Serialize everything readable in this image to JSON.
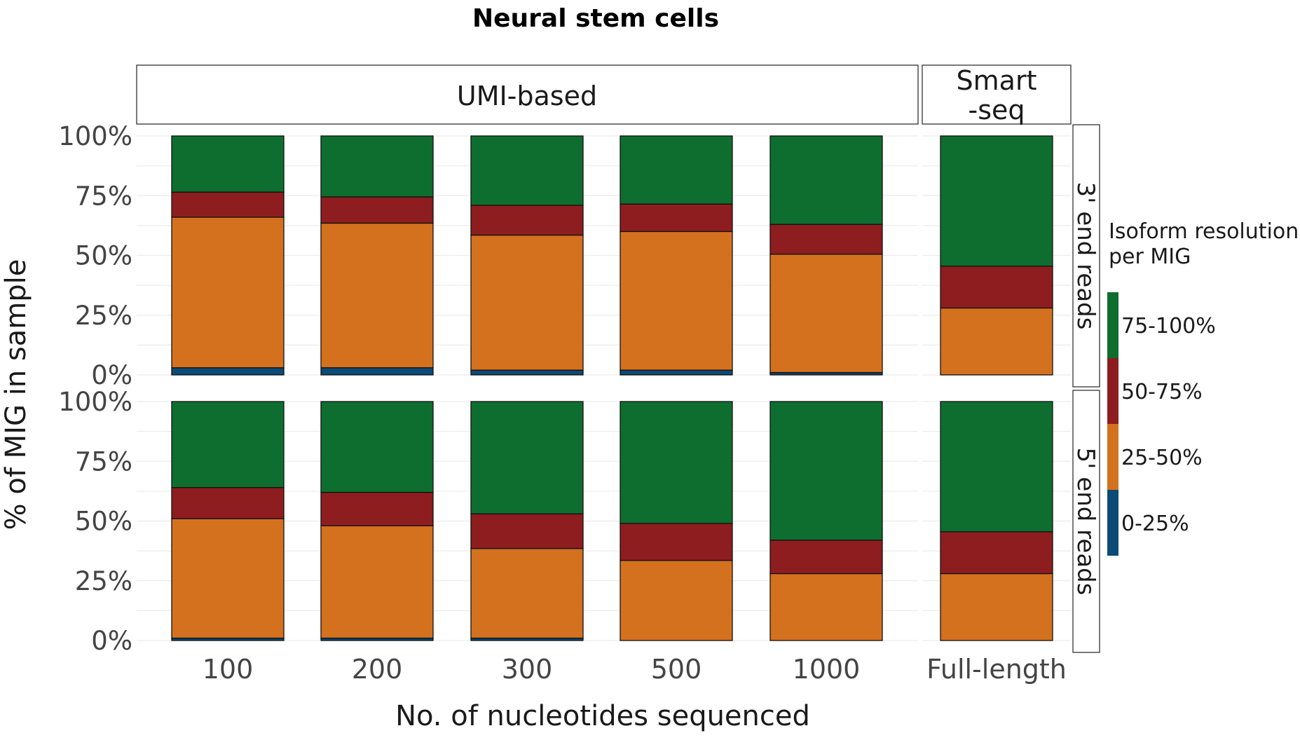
{
  "chart_data": {
    "type": "bar",
    "stacked": true,
    "title": "Neural stem cells",
    "xlabel": "No. of nucleotides sequenced",
    "ylabel": "% of MIG in sample",
    "ylim": [
      0,
      100
    ],
    "y_ticks": [
      "0%",
      "25%",
      "50%",
      "75%",
      "100%"
    ],
    "grid": true,
    "legend_position": "right",
    "legend": {
      "title_line1": "Isoform resolution",
      "title_line2": "per MIG",
      "entries": [
        {
          "key": "75-100%",
          "label": "75-100%",
          "color": "#0e6e2f"
        },
        {
          "key": "50-75%",
          "label": "50-75%",
          "color": "#8e1d1f"
        },
        {
          "key": "25-50%",
          "label": "25-50%",
          "color": "#d4711f"
        },
        {
          "key": "0-25%",
          "label": "0-25%",
          "color": "#0c4a77"
        }
      ]
    },
    "column_facets": [
      {
        "label": "UMI-based",
        "categories": [
          "100",
          "200",
          "300",
          "500",
          "1000"
        ]
      },
      {
        "label_line1": "Smart",
        "label_line2": "-seq",
        "categories": [
          "Full-length"
        ]
      }
    ],
    "row_facets": [
      {
        "label": "3' end reads",
        "series": [
          {
            "name": "0-25%",
            "values": [
              3.0,
              3.0,
              2.0,
              2.0,
              1.0,
              0.0
            ]
          },
          {
            "name": "25-50%",
            "values": [
              63.0,
              60.5,
              56.5,
              58.0,
              49.5,
              28.0
            ]
          },
          {
            "name": "50-75%",
            "values": [
              10.5,
              11.0,
              12.5,
              11.5,
              12.5,
              17.5
            ]
          },
          {
            "name": "75-100%",
            "values": [
              23.5,
              25.5,
              29.0,
              28.5,
              37.0,
              54.5
            ]
          }
        ]
      },
      {
        "label": "5' end reads",
        "series": [
          {
            "name": "0-25%",
            "values": [
              1.0,
              1.0,
              1.0,
              0.0,
              0.0,
              0.0
            ]
          },
          {
            "name": "25-50%",
            "values": [
              50.0,
              47.0,
              37.5,
              33.5,
              28.0,
              28.0
            ]
          },
          {
            "name": "50-75%",
            "values": [
              13.0,
              14.0,
              14.5,
              15.5,
              14.0,
              17.5
            ]
          },
          {
            "name": "75-100%",
            "values": [
              36.0,
              38.0,
              47.0,
              51.0,
              58.0,
              54.5
            ]
          }
        ]
      }
    ]
  }
}
